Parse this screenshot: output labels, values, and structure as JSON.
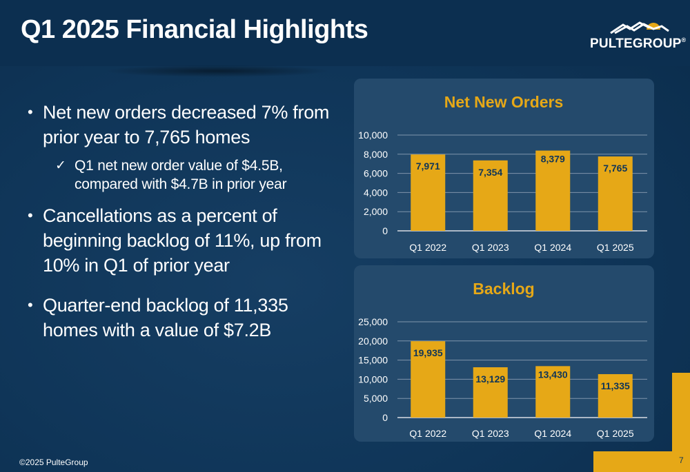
{
  "slide": {
    "title": "Q1 2025 Financial Highlights",
    "logo_text": "PULTEGROUP",
    "logo_mark": "®",
    "footer": "©2025 PulteGroup",
    "page_number": "7",
    "colors": {
      "background": "#0f3558",
      "card": "#244a6c",
      "accent": "#e6a817",
      "label": "#0f3558"
    }
  },
  "bullets": [
    {
      "text": "Net new orders decreased 7% from prior year to 7,765 homes",
      "sub": "Q1 net new order value of $4.5B, compared with $4.7B in prior year"
    },
    {
      "text": "Cancellations as a percent of beginning backlog of 11%, up from 10% in Q1 of prior year"
    },
    {
      "text": "Quarter-end backlog of 11,335 homes with a value of $7.2B"
    }
  ],
  "chart_data": [
    {
      "type": "bar",
      "title": "Net New Orders",
      "categories": [
        "Q1 2022",
        "Q1 2023",
        "Q1 2024",
        "Q1 2025"
      ],
      "values": [
        7971,
        7354,
        8379,
        7765
      ],
      "value_labels": [
        "7,971",
        "7,354",
        "8,379",
        "7,765"
      ],
      "ylim": [
        0,
        10000
      ],
      "yticks": [
        "0",
        "2,000",
        "4,000",
        "6,000",
        "8,000",
        "10,000"
      ],
      "grid": true,
      "bar_color": "#e6a817"
    },
    {
      "type": "bar",
      "title": "Backlog",
      "categories": [
        "Q1 2022",
        "Q1 2023",
        "Q1 2024",
        "Q1 2025"
      ],
      "values": [
        19935,
        13129,
        13430,
        11335
      ],
      "value_labels": [
        "19,935",
        "13,129",
        "13,430",
        "11,335"
      ],
      "ylim": [
        0,
        25000
      ],
      "yticks": [
        "0",
        "5,000",
        "10,000",
        "15,000",
        "20,000",
        "25,000"
      ],
      "grid": true,
      "bar_color": "#e6a817"
    }
  ]
}
